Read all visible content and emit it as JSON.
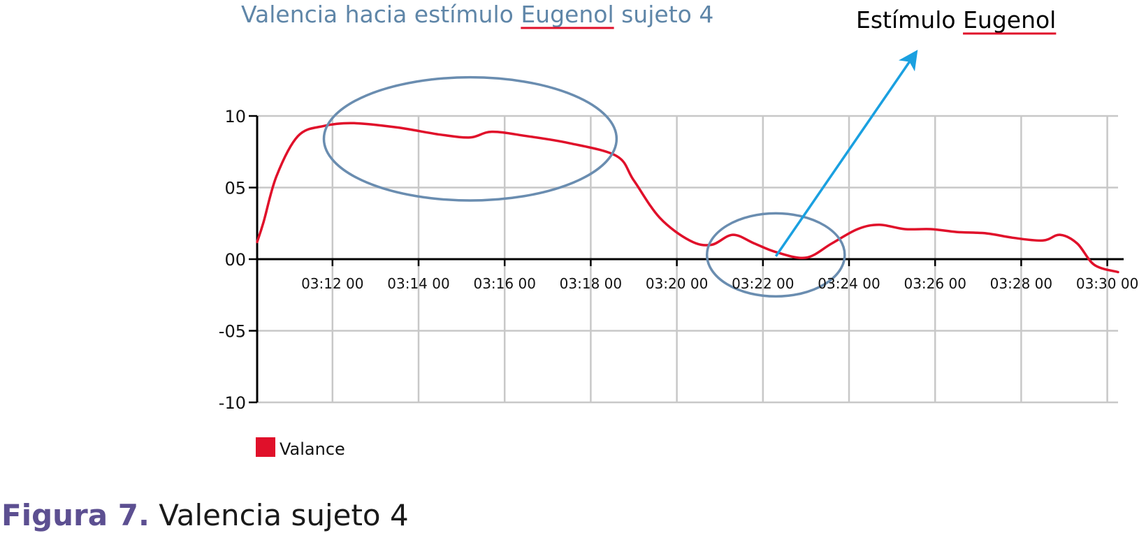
{
  "title": {
    "before": "Valencia hacia estímulo ",
    "underlined": "Eugenol",
    "after": " sujeto 4"
  },
  "stimulus_note": {
    "before": "Estímulo ",
    "underlined": "Eugenol"
  },
  "caption": {
    "label": "Figura 7.",
    "text": " Valencia sujeto 4"
  },
  "colors": {
    "title": "#5f86a8",
    "series": "#e0102a",
    "highlight": "#6a8db0",
    "arrow": "#1aa0e0",
    "caption_label": "#5c4f91",
    "underline": "#e0102a",
    "grid": "#c8c8c8"
  },
  "chart_data": {
    "type": "line",
    "title": "Valencia hacia estímulo Eugenol sujeto 4",
    "xlabel": "",
    "ylabel": "",
    "x_ticks": [
      "03:12 00",
      "03:14 00",
      "03:16 00",
      "03:18 00",
      "03:20 00",
      "03:22 00",
      "03:24 00",
      "03:26 00",
      "03:28 00",
      "03:30 00"
    ],
    "y_ticks": [
      {
        "value": 10,
        "label": "10"
      },
      {
        "value": 5,
        "label": "05"
      },
      {
        "value": 0,
        "label": "00"
      },
      {
        "value": -5,
        "label": "-05"
      },
      {
        "value": -10,
        "label": "-10"
      }
    ],
    "xlim_minutes": [
      190.25,
      210.25
    ],
    "ylim": [
      -10,
      10
    ],
    "grid": true,
    "legend_position": "bottom-left",
    "series": [
      {
        "name": "Valance",
        "x_minutes": [
          190.25,
          190.4,
          190.7,
          191.2,
          191.8,
          192.5,
          193.5,
          194.5,
          195.2,
          195.7,
          196.5,
          197.5,
          198.6,
          199.0,
          199.6,
          200.3,
          200.8,
          201.3,
          201.8,
          202.3,
          203.0,
          203.6,
          204.2,
          204.7,
          205.3,
          205.9,
          206.5,
          207.2,
          207.8,
          208.5,
          208.9,
          209.3,
          209.7,
          210.25
        ],
        "values": [
          1.2,
          2.6,
          5.8,
          8.6,
          9.3,
          9.5,
          9.2,
          8.7,
          8.5,
          8.9,
          8.6,
          8.1,
          7.2,
          5.5,
          2.9,
          1.3,
          1.0,
          1.7,
          1.1,
          0.5,
          0.1,
          1.1,
          2.1,
          2.4,
          2.1,
          2.1,
          1.9,
          1.8,
          1.5,
          1.3,
          1.7,
          1.1,
          -0.4,
          -0.9
        ]
      }
    ],
    "annotations": [
      {
        "type": "ellipse",
        "label": "",
        "center_minutes": 195.2,
        "center_value": 8.4,
        "semi_axis_minutes": 3.4,
        "semi_axis_value": 4.3
      },
      {
        "type": "ellipse",
        "label": "",
        "center_minutes": 202.3,
        "center_value": 0.3,
        "semi_axis_minutes": 1.6,
        "semi_axis_value": 2.9
      },
      {
        "type": "arrow",
        "label": "Estímulo Eugenol",
        "from_minutes": 202.3,
        "from_value": 0.2,
        "to_minutes": 205.5,
        "to_value": 14.2
      }
    ]
  }
}
